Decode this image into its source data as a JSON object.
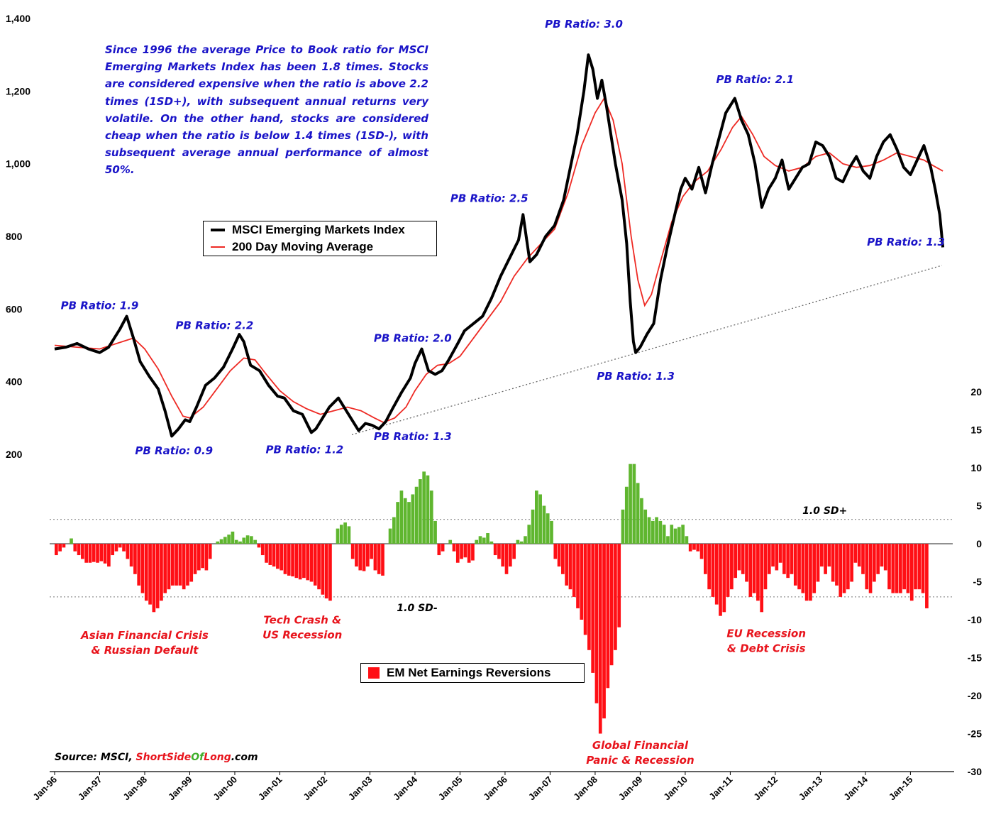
{
  "chart_data": {
    "type": "line",
    "note": "Since 1996 the average Price to Book ratio for MSCI Emerging Markets Index has been 1.8 times. Stocks are considered expensive when the ratio is above 2.2 times (1SD+), with subsequent annual returns very volatile. On the other hand, stocks are considered cheap when the ratio is below 1.4 times (1SD-), with subsequent average annual performance of almost 50%.",
    "source": {
      "prefix": "Source: MSCI, ",
      "part1": "ShortSide",
      "part2": "Of",
      "part3": "Long",
      "suffix": ".com"
    },
    "x_ticks": [
      "Jan-96",
      "Jan-97",
      "Jan-98",
      "Jan-99",
      "Jan-00",
      "Jan-01",
      "Jan-02",
      "Jan-03",
      "Jan-04",
      "Jan-05",
      "Jan-06",
      "Jan-07",
      "Jan-08",
      "Jan-09",
      "Jan-10",
      "Jan-11",
      "Jan-12",
      "Jan-13",
      "Jan-14",
      "Jan-15"
    ],
    "xlim": [
      1996,
      2015.75
    ],
    "left_axis": {
      "ticks": [
        "200",
        "400",
        "600",
        "800",
        "1,000",
        "1,200",
        "1,400"
      ],
      "ylim": [
        200,
        1400
      ]
    },
    "right_axis": {
      "ticks": [
        "20",
        "15",
        "10",
        "5",
        "0",
        "-5",
        "-10",
        "-15",
        "-20",
        "-25",
        "-30"
      ],
      "ylim": [
        -30,
        20
      ]
    },
    "legend_top": [
      "MSCI Emerging Markets Index",
      "200 Day Moving Average"
    ],
    "legend_bottom": [
      "EM Net Earnings Reversions"
    ],
    "sd_lines": {
      "upper": 3.2,
      "lower": -7.0,
      "upper_label": "1.0 SD+",
      "lower_label": "1.0 SD-"
    },
    "trendline": {
      "from": [
        2002.6,
        254
      ],
      "to": [
        2015.7,
        720
      ]
    },
    "colors": {
      "index": "#000000",
      "ma": "#ee2a24",
      "positive": "#5fb62f",
      "negative": "#ff0f15",
      "pb_labels": "#1a14c8",
      "crisis_labels": "#e8141c"
    },
    "series": [
      {
        "name": "MSCI Emerging Markets Index",
        "points": [
          [
            1996.0,
            490
          ],
          [
            1996.25,
            495
          ],
          [
            1996.5,
            505
          ],
          [
            1996.75,
            490
          ],
          [
            1997.0,
            480
          ],
          [
            1997.2,
            495
          ],
          [
            1997.45,
            545
          ],
          [
            1997.6,
            580
          ],
          [
            1997.75,
            520
          ],
          [
            1997.9,
            455
          ],
          [
            1998.1,
            415
          ],
          [
            1998.3,
            380
          ],
          [
            1998.45,
            320
          ],
          [
            1998.6,
            250
          ],
          [
            1998.75,
            270
          ],
          [
            1998.9,
            295
          ],
          [
            1999.0,
            290
          ],
          [
            1999.15,
            330
          ],
          [
            1999.35,
            390
          ],
          [
            1999.55,
            410
          ],
          [
            1999.75,
            440
          ],
          [
            1999.95,
            490
          ],
          [
            2000.1,
            530
          ],
          [
            2000.2,
            510
          ],
          [
            2000.35,
            445
          ],
          [
            2000.55,
            430
          ],
          [
            2000.75,
            390
          ],
          [
            2000.95,
            360
          ],
          [
            2001.1,
            355
          ],
          [
            2001.3,
            320
          ],
          [
            2001.5,
            310
          ],
          [
            2001.7,
            260
          ],
          [
            2001.8,
            270
          ],
          [
            2001.95,
            300
          ],
          [
            2002.1,
            330
          ],
          [
            2002.3,
            355
          ],
          [
            2002.45,
            325
          ],
          [
            2002.6,
            295
          ],
          [
            2002.75,
            265
          ],
          [
            2002.9,
            285
          ],
          [
            2003.05,
            280
          ],
          [
            2003.2,
            270
          ],
          [
            2003.35,
            290
          ],
          [
            2003.5,
            325
          ],
          [
            2003.7,
            370
          ],
          [
            2003.9,
            410
          ],
          [
            2004.0,
            450
          ],
          [
            2004.15,
            490
          ],
          [
            2004.3,
            430
          ],
          [
            2004.45,
            420
          ],
          [
            2004.6,
            430
          ],
          [
            2004.75,
            460
          ],
          [
            2004.95,
            505
          ],
          [
            2005.1,
            540
          ],
          [
            2005.3,
            560
          ],
          [
            2005.5,
            580
          ],
          [
            2005.7,
            630
          ],
          [
            2005.9,
            690
          ],
          [
            2006.1,
            740
          ],
          [
            2006.3,
            790
          ],
          [
            2006.4,
            860
          ],
          [
            2006.55,
            730
          ],
          [
            2006.7,
            750
          ],
          [
            2006.9,
            800
          ],
          [
            2007.1,
            830
          ],
          [
            2007.3,
            900
          ],
          [
            2007.45,
            990
          ],
          [
            2007.6,
            1080
          ],
          [
            2007.75,
            1200
          ],
          [
            2007.85,
            1300
          ],
          [
            2007.95,
            1260
          ],
          [
            2008.05,
            1180
          ],
          [
            2008.15,
            1230
          ],
          [
            2008.25,
            1160
          ],
          [
            2008.45,
            1000
          ],
          [
            2008.6,
            900
          ],
          [
            2008.7,
            780
          ],
          [
            2008.78,
            620
          ],
          [
            2008.85,
            510
          ],
          [
            2008.9,
            480
          ],
          [
            2009.0,
            495
          ],
          [
            2009.15,
            530
          ],
          [
            2009.3,
            560
          ],
          [
            2009.45,
            680
          ],
          [
            2009.6,
            770
          ],
          [
            2009.75,
            850
          ],
          [
            2009.9,
            930
          ],
          [
            2010.0,
            960
          ],
          [
            2010.15,
            930
          ],
          [
            2010.3,
            990
          ],
          [
            2010.45,
            920
          ],
          [
            2010.6,
            1000
          ],
          [
            2010.75,
            1070
          ],
          [
            2010.9,
            1140
          ],
          [
            2011.0,
            1160
          ],
          [
            2011.1,
            1180
          ],
          [
            2011.25,
            1120
          ],
          [
            2011.4,
            1080
          ],
          [
            2011.55,
            1000
          ],
          [
            2011.7,
            880
          ],
          [
            2011.85,
            930
          ],
          [
            2012.0,
            960
          ],
          [
            2012.15,
            1010
          ],
          [
            2012.3,
            930
          ],
          [
            2012.45,
            960
          ],
          [
            2012.6,
            990
          ],
          [
            2012.75,
            1000
          ],
          [
            2012.9,
            1060
          ],
          [
            2013.05,
            1050
          ],
          [
            2013.2,
            1020
          ],
          [
            2013.35,
            960
          ],
          [
            2013.5,
            950
          ],
          [
            2013.65,
            990
          ],
          [
            2013.8,
            1020
          ],
          [
            2013.95,
            980
          ],
          [
            2014.1,
            960
          ],
          [
            2014.25,
            1020
          ],
          [
            2014.4,
            1060
          ],
          [
            2014.55,
            1080
          ],
          [
            2014.7,
            1040
          ],
          [
            2014.85,
            990
          ],
          [
            2015.0,
            970
          ],
          [
            2015.15,
            1010
          ],
          [
            2015.3,
            1050
          ],
          [
            2015.45,
            990
          ],
          [
            2015.55,
            930
          ],
          [
            2015.65,
            860
          ],
          [
            2015.72,
            770
          ]
        ]
      },
      {
        "name": "200 Day Moving Average",
        "points": [
          [
            1996.0,
            500
          ],
          [
            1996.5,
            495
          ],
          [
            1997.0,
            490
          ],
          [
            1997.5,
            510
          ],
          [
            1997.75,
            520
          ],
          [
            1998.0,
            490
          ],
          [
            1998.3,
            435
          ],
          [
            1998.6,
            360
          ],
          [
            1998.85,
            305
          ],
          [
            1999.0,
            300
          ],
          [
            1999.3,
            330
          ],
          [
            1999.6,
            380
          ],
          [
            1999.9,
            430
          ],
          [
            2000.2,
            465
          ],
          [
            2000.45,
            460
          ],
          [
            2000.7,
            420
          ],
          [
            2001.0,
            375
          ],
          [
            2001.3,
            345
          ],
          [
            2001.6,
            325
          ],
          [
            2001.9,
            310
          ],
          [
            2002.2,
            320
          ],
          [
            2002.5,
            330
          ],
          [
            2002.8,
            320
          ],
          [
            2003.1,
            300
          ],
          [
            2003.3,
            288
          ],
          [
            2003.55,
            300
          ],
          [
            2003.8,
            330
          ],
          [
            2004.0,
            375
          ],
          [
            2004.25,
            420
          ],
          [
            2004.5,
            445
          ],
          [
            2004.75,
            450
          ],
          [
            2005.0,
            470
          ],
          [
            2005.3,
            520
          ],
          [
            2005.6,
            570
          ],
          [
            2005.9,
            620
          ],
          [
            2006.2,
            690
          ],
          [
            2006.5,
            740
          ],
          [
            2006.8,
            780
          ],
          [
            2007.1,
            820
          ],
          [
            2007.4,
            920
          ],
          [
            2007.7,
            1050
          ],
          [
            2008.0,
            1140
          ],
          [
            2008.2,
            1180
          ],
          [
            2008.4,
            1120
          ],
          [
            2008.6,
            1000
          ],
          [
            2008.8,
            800
          ],
          [
            2008.95,
            680
          ],
          [
            2009.1,
            610
          ],
          [
            2009.25,
            640
          ],
          [
            2009.45,
            730
          ],
          [
            2009.7,
            840
          ],
          [
            2009.95,
            910
          ],
          [
            2010.2,
            950
          ],
          [
            2010.5,
            980
          ],
          [
            2010.8,
            1040
          ],
          [
            2011.05,
            1100
          ],
          [
            2011.25,
            1130
          ],
          [
            2011.5,
            1080
          ],
          [
            2011.75,
            1020
          ],
          [
            2012.0,
            995
          ],
          [
            2012.3,
            980
          ],
          [
            2012.6,
            990
          ],
          [
            2012.9,
            1020
          ],
          [
            2013.2,
            1030
          ],
          [
            2013.5,
            1000
          ],
          [
            2013.8,
            990
          ],
          [
            2014.1,
            995
          ],
          [
            2014.4,
            1010
          ],
          [
            2014.7,
            1030
          ],
          [
            2015.0,
            1020
          ],
          [
            2015.3,
            1010
          ],
          [
            2015.5,
            995
          ],
          [
            2015.72,
            980
          ]
        ]
      },
      {
        "name": "EM Net Earnings Reversions",
        "x_start": 1996.0,
        "step": 0.0833,
        "values": [
          -1.5,
          -1,
          -0.5,
          0,
          0.7,
          -1,
          -1.5,
          -2,
          -2.5,
          -2.5,
          -2.4,
          -2.5,
          -2.3,
          -2.6,
          -3,
          -1.5,
          -1,
          -0.5,
          -1,
          -2,
          -3,
          -4,
          -5.5,
          -6.5,
          -7.5,
          -8,
          -9,
          -8.5,
          -7.5,
          -6.5,
          -6,
          -5.5,
          -5.5,
          -5.5,
          -6,
          -5.5,
          -5,
          -4,
          -3.5,
          -3.2,
          -3.5,
          -2,
          0,
          0.3,
          0.6,
          0.9,
          1.2,
          1.6,
          0.5,
          0.3,
          0.8,
          1.1,
          1,
          0.5,
          -0.5,
          -1.5,
          -2.5,
          -2.8,
          -3,
          -3.3,
          -3.5,
          -4,
          -4.2,
          -4.3,
          -4.5,
          -4.7,
          -4.5,
          -4.8,
          -5,
          -5.5,
          -6,
          -6.7,
          -7.2,
          -7.5,
          0,
          2,
          2.5,
          2.8,
          2.3,
          -2,
          -3,
          -3.5,
          -3.6,
          -3,
          -2,
          -3.5,
          -4,
          -4.2,
          0,
          2,
          3.5,
          5.5,
          7,
          6,
          5.5,
          6.5,
          7.5,
          8.5,
          9.5,
          9,
          7,
          3,
          -1.5,
          -1,
          0,
          0.5,
          -1,
          -2.5,
          -2,
          -1.8,
          -2.5,
          -2.2,
          0.5,
          1,
          0.8,
          1.4,
          0.3,
          -1.5,
          -2,
          -3,
          -4,
          -3,
          -2,
          0.5,
          0.3,
          1,
          2.5,
          4.5,
          7,
          6.5,
          5,
          4,
          3,
          -2,
          -3,
          -4,
          -5.5,
          -6,
          -7,
          -8.5,
          -10,
          -12,
          -14,
          -17,
          -21,
          -25,
          -23,
          -19,
          -16,
          -14,
          -11,
          4.5,
          7.5,
          10.5,
          10.5,
          8,
          6,
          4.5,
          3.5,
          3,
          3.5,
          3,
          2.5,
          1,
          2.5,
          2,
          2.2,
          2.5,
          1,
          -1,
          -0.8,
          -1,
          -2,
          -4,
          -6,
          -7,
          -8,
          -9.5,
          -9,
          -7,
          -6,
          -4.5,
          -3.5,
          -4,
          -5,
          -7,
          -6.5,
          -7.5,
          -9,
          -6,
          -4,
          -3,
          -3.5,
          -2.5,
          -4,
          -4.5,
          -4,
          -5.5,
          -6,
          -6.5,
          -7.5,
          -7.5,
          -6.5,
          -5,
          -3,
          -4,
          -3,
          -5,
          -5.5,
          -7,
          -6.5,
          -6,
          -5,
          -2.5,
          -3,
          -4,
          -6,
          -6.5,
          -5,
          -4,
          -3,
          -3.5,
          -6,
          -6.5,
          -6.5,
          -6.5,
          -6,
          -6.5,
          -7.5,
          -6,
          -6,
          -6.5,
          -8.5
        ]
      }
    ],
    "pb_annotations": [
      {
        "text": "PB Ratio: 1.9",
        "x": 1997.0,
        "y": 600
      },
      {
        "text": "PB Ratio: 2.2",
        "x": 1999.55,
        "y": 545
      },
      {
        "text": "PB Ratio: 0.9",
        "x": 1998.65,
        "y": 200
      },
      {
        "text": "PB Ratio: 1.2",
        "x": 2001.55,
        "y": 203
      },
      {
        "text": "PB Ratio: 2.0",
        "x": 2003.95,
        "y": 510
      },
      {
        "text": "PB Ratio: 1.3",
        "x": 2003.95,
        "y": 239
      },
      {
        "text": "PB Ratio: 2.5",
        "x": 2005.65,
        "y": 895
      },
      {
        "text": "PB Ratio: 3.0",
        "x": 2007.75,
        "y": 1375
      },
      {
        "text": "PB Ratio: 1.3",
        "x": 2008.9,
        "y": 405
      },
      {
        "text": "PB Ratio: 2.1",
        "x": 2011.55,
        "y": 1222
      },
      {
        "text": "PB Ratio: 1.3",
        "x": 2014.9,
        "y": 775
      }
    ],
    "crisis_annotations": [
      {
        "lines": [
          "Asian Financial Crisis",
          "& Russian Default"
        ],
        "x": 1998.0,
        "y": -12.5
      },
      {
        "lines": [
          "Tech Crash &",
          "US Recession"
        ],
        "x": 2001.5,
        "y": -10.5
      },
      {
        "lines": [
          "Global Financial",
          "Panic & Recession"
        ],
        "x": 2009.0,
        "y": -27
      },
      {
        "lines": [
          "EU Recession",
          "& Debt Crisis"
        ],
        "x": 2011.8,
        "y": -12.3
      }
    ]
  }
}
